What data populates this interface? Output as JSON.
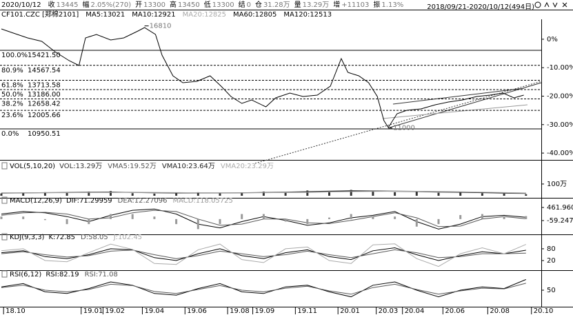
{
  "header": {
    "date": "2020/10/12",
    "items": [
      {
        "label": "收",
        "value": "13445"
      },
      {
        "label": "幅",
        "value": "2.05%(270)"
      },
      {
        "label": "开",
        "value": "13300"
      },
      {
        "label": "高",
        "value": "13450"
      },
      {
        "label": "低",
        "value": "13300"
      },
      {
        "label": "结",
        "value": "0"
      },
      {
        "label": "仓",
        "value": "31.28万"
      },
      {
        "label": "量",
        "value": "13.29万"
      },
      {
        "label": "增",
        "value": "+11103"
      },
      {
        "label": "振",
        "value": "1.13%"
      }
    ],
    "range": "2018/09/21-2020/10/12(494日)"
  },
  "chart_data": [
    {
      "type": "line",
      "title": "CF101.CZC [郑棉2101]",
      "indicators": [
        "MA5:13021",
        "MA10:12921",
        "MA20:12825",
        "MA60:12805",
        "MA120:12513"
      ],
      "x": [
        0,
        11,
        24,
        37,
        49,
        62,
        71,
        77,
        87,
        100,
        112,
        125,
        131,
        141,
        147,
        157,
        166,
        179,
        191,
        201,
        210,
        220,
        229,
        242,
        251,
        264,
        276,
        289,
        301,
        311,
        317,
        327,
        336,
        344,
        350,
        354,
        362,
        371,
        384,
        397,
        409,
        422,
        435,
        447,
        459,
        469,
        478
      ],
      "values": [
        16637,
        16402,
        16127,
        15931,
        15343,
        14833,
        14559,
        16127,
        16323,
        16010,
        16127,
        16519,
        16715,
        16323,
        15147,
        13970,
        13578,
        13657,
        13970,
        13382,
        12794,
        12402,
        12598,
        12206,
        12715,
        12990,
        12794,
        12872,
        13382,
        14951,
        14166,
        13970,
        13578,
        12794,
        11421,
        11029,
        11813,
        12010,
        12088,
        12323,
        12480,
        12598,
        12794,
        12872,
        12990,
        12715,
        12872
      ],
      "color": "#000000",
      "xlim": [
        0,
        494
      ],
      "ylim": [
        9186,
        17186
      ],
      "xticks": [
        {
          "value": 2,
          "label": "18.10"
        },
        {
          "value": 73,
          "label": "19.01"
        },
        {
          "value": 93,
          "label": "19.02"
        },
        {
          "value": 129,
          "label": "19.04"
        },
        {
          "value": 168,
          "label": "19.06"
        },
        {
          "value": 207,
          "label": "19.08"
        },
        {
          "value": 230,
          "label": "19.09"
        },
        {
          "value": 269,
          "label": "19.11"
        },
        {
          "value": 308,
          "label": "20.01"
        },
        {
          "value": 343,
          "label": "20.03"
        },
        {
          "value": 367,
          "label": "20.04"
        },
        {
          "value": 404,
          "label": "20.06"
        },
        {
          "value": 445,
          "label": "20.08"
        },
        {
          "value": 485,
          "label": "20.10"
        }
      ],
      "y2lim": [
        -42.4,
        7.0
      ],
      "y2ticks": [
        {
          "value": 0,
          "label": "0%"
        },
        {
          "value": -10,
          "label": "-10.00%"
        },
        {
          "value": -20,
          "label": "-20.00%"
        },
        {
          "value": -30,
          "label": "-30.00%"
        },
        {
          "value": -40,
          "label": "-40.00%"
        }
      ],
      "fib_levels": [
        {
          "level": {
            "value": 100,
            "label": "100.0%"
          },
          "price": {
            "value": 15421.5,
            "label": "15421.50"
          }
        },
        {
          "level": {
            "value": 80.9,
            "label": "80.9%"
          },
          "price": {
            "value": 14567.54,
            "label": "14567.54"
          }
        },
        {
          "level": {
            "value": 61.8,
            "label": "61.8%"
          },
          "price": {
            "value": 13713.58,
            "label": "13713.58"
          }
        },
        {
          "level": {
            "value": 50,
            "label": "50.0%"
          },
          "price": {
            "value": 13186,
            "label": "13186.00"
          }
        },
        {
          "level": {
            "value": 38.2,
            "label": "38.2%"
          },
          "price": {
            "value": 12658.42,
            "label": "12658.42"
          }
        },
        {
          "level": {
            "value": 23.6,
            "label": "23.6%"
          },
          "price": {
            "value": 12005.66,
            "label": "12005.66"
          }
        },
        {
          "level": {
            "value": 0,
            "label": "0.0%"
          },
          "price": {
            "value": 10950.51,
            "label": "10950.51"
          }
        }
      ],
      "annotations": [
        {
          "x": 131,
          "value": 16810
        },
        {
          "x": 354,
          "value": 11000
        }
      ]
    },
    {
      "type": "line",
      "title": "VOL(5,10,20)",
      "x": [
        0,
        20,
        40,
        60,
        80,
        100,
        120,
        140,
        160,
        180,
        200,
        220,
        240,
        260,
        280,
        300,
        320,
        340,
        360,
        380,
        400,
        420,
        440,
        460,
        480
      ],
      "ylim": [
        0,
        258
      ],
      "yticks": [
        {
          "value": 100,
          "label": "100万"
        }
      ],
      "series": [
        {
          "name": "VOL:13.29万",
          "type": "bar",
          "color": "#333333",
          "values": [
            20,
            25,
            30,
            28,
            35,
            40,
            22,
            18,
            25,
            30,
            20,
            28,
            35,
            30,
            45,
            40,
            50,
            35,
            30,
            38,
            25,
            28,
            22,
            18,
            13.29
          ]
        },
        {
          "name": "VMA5:19.52万",
          "color": "#555555",
          "values": [
            22,
            24,
            27,
            29,
            31,
            32,
            28,
            24,
            23,
            25,
            24,
            26,
            29,
            31,
            36,
            40,
            44,
            41,
            37,
            35,
            31,
            29,
            26,
            21,
            19.52
          ]
        },
        {
          "name": "VMA10:23.64万",
          "color": "#222222",
          "values": [
            24,
            25,
            26,
            27,
            29,
            30,
            29,
            27,
            25,
            24,
            24,
            25,
            27,
            29,
            32,
            36,
            40,
            41,
            40,
            38,
            34,
            31,
            28,
            25,
            23.64
          ]
        },
        {
          "name": "VMA20:23.29万",
          "color": "#aaaaaa",
          "values": [
            25,
            25,
            26,
            26,
            27,
            28,
            28,
            28,
            27,
            26,
            25,
            25,
            26,
            27,
            29,
            32,
            35,
            37,
            38,
            38,
            36,
            34,
            31,
            27,
            23.29
          ]
        }
      ]
    },
    {
      "type": "line",
      "title": "MACD(12,26,9)",
      "x": [
        0,
        20,
        40,
        60,
        80,
        100,
        120,
        140,
        160,
        180,
        200,
        220,
        240,
        260,
        280,
        300,
        320,
        340,
        360,
        380,
        400,
        420,
        440,
        460,
        480
      ],
      "ylim": [
        -553,
        763
      ],
      "yticks": [
        461.9605,
        {
          "value": -59.2475,
          "label": "-59.24750"
        }
      ],
      "series": [
        {
          "name": "DIF:71.29959",
          "color": "#000000",
          "values": [
            200,
            300,
            250,
            100,
            -100,
            150,
            350,
            400,
            200,
            -200,
            -350,
            -100,
            100,
            -50,
            -250,
            -150,
            50,
            150,
            300,
            -100,
            -400,
            -200,
            100,
            150,
            71.29959
          ]
        },
        {
          "name": "DEA:12.27096",
          "color": "#555555",
          "values": [
            150,
            250,
            270,
            200,
            0,
            50,
            250,
            350,
            300,
            0,
            -250,
            -200,
            0,
            0,
            -150,
            -180,
            -50,
            100,
            250,
            50,
            -300,
            -280,
            0,
            100,
            12.27096
          ]
        },
        {
          "name": "MACD:118.05725",
          "type": "bar",
          "color": "#999999",
          "values": [
            100,
            100,
            -40,
            -200,
            -200,
            200,
            200,
            100,
            -200,
            -400,
            -200,
            200,
            200,
            -100,
            -200,
            60,
            200,
            100,
            100,
            -300,
            -200,
            160,
            200,
            100,
            118.05725
          ]
        }
      ]
    },
    {
      "type": "line",
      "title": "KDJ(9,3,3)",
      "x": [
        0,
        20,
        40,
        60,
        80,
        100,
        120,
        140,
        160,
        180,
        200,
        220,
        240,
        260,
        280,
        300,
        320,
        340,
        360,
        380,
        400,
        420,
        440,
        460,
        480
      ],
      "ylim": [
        -22,
        143
      ],
      "yticks": [
        80,
        20
      ],
      "series": [
        {
          "name": "K:72.85",
          "color": "#000000",
          "values": [
            60,
            70,
            40,
            30,
            50,
            80,
            75,
            35,
            20,
            55,
            80,
            45,
            30,
            60,
            75,
            40,
            25,
            70,
            85,
            50,
            20,
            45,
            65,
            55,
            72.85
          ]
        },
        {
          "name": "D:58.05",
          "color": "#555555",
          "values": [
            55,
            65,
            50,
            38,
            45,
            68,
            74,
            50,
            30,
            45,
            68,
            55,
            40,
            50,
            68,
            50,
            35,
            55,
            75,
            60,
            35,
            40,
            55,
            55,
            58.05
          ]
        },
        {
          "name": "J:102.45",
          "color": "#aaaaaa",
          "values": [
            70,
            80,
            20,
            14,
            60,
            104,
            77,
            5,
            0,
            75,
            104,
            25,
            10,
            80,
            89,
            20,
            5,
            100,
            105,
            30,
            -10,
            55,
            85,
            55,
            102.45
          ]
        }
      ]
    },
    {
      "type": "line",
      "title": "RSI(6,12)",
      "x": [
        0,
        20,
        40,
        60,
        80,
        100,
        120,
        140,
        160,
        180,
        200,
        220,
        240,
        260,
        280,
        300,
        320,
        340,
        360,
        380,
        400,
        420,
        440,
        460,
        480
      ],
      "ylim": [
        0,
        100
      ],
      "yticks": [
        50
      ],
      "series": [
        {
          "name": "RSI:82.19",
          "color": "#000000",
          "values": [
            60,
            70,
            45,
            40,
            55,
            75,
            65,
            40,
            35,
            55,
            70,
            45,
            40,
            60,
            65,
            45,
            30,
            65,
            75,
            50,
            30,
            50,
            60,
            55,
            82.19
          ]
        },
        {
          "name": "RSI:71.08",
          "color": "#555555",
          "values": [
            58,
            65,
            50,
            45,
            52,
            68,
            64,
            46,
            40,
            52,
            64,
            50,
            45,
            56,
            62,
            48,
            38,
            58,
            68,
            52,
            38,
            48,
            56,
            54,
            71.08
          ]
        }
      ]
    }
  ]
}
